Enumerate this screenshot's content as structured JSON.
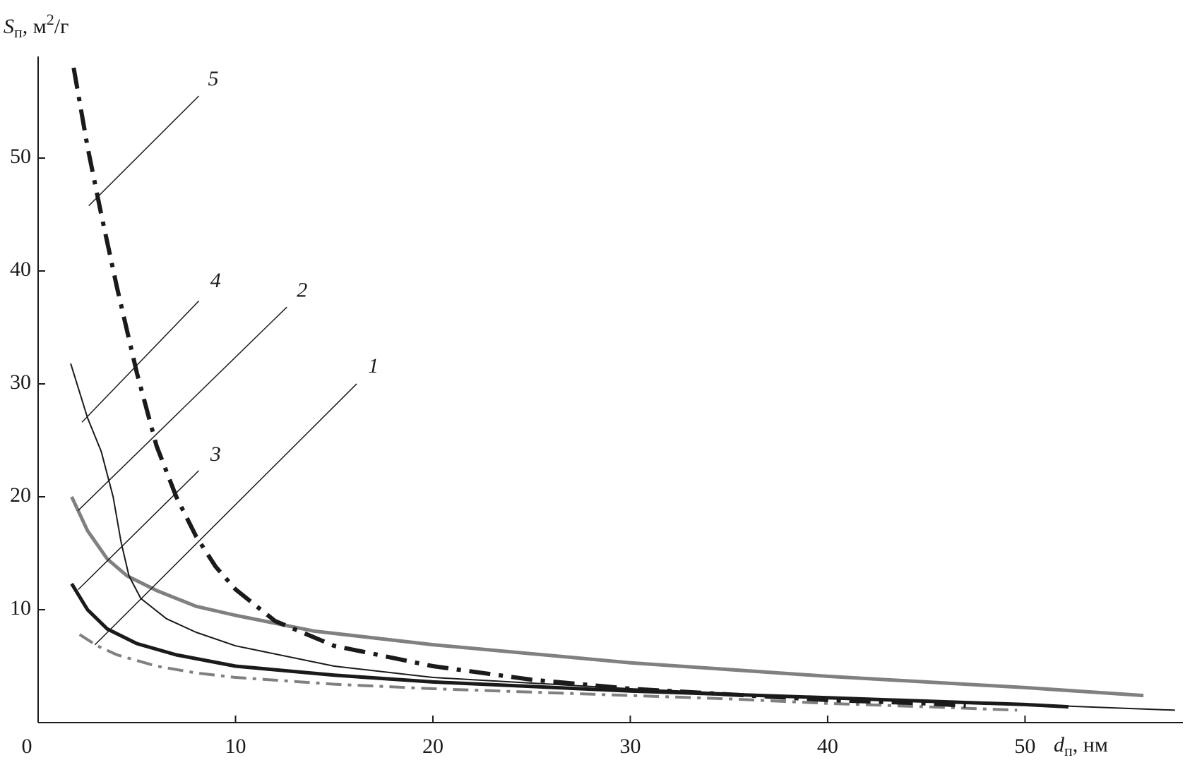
{
  "chart_data": {
    "type": "line",
    "y_label": [
      "S",
      "п",
      ", м",
      "2",
      "/г"
    ],
    "x_label": [
      "d",
      "п",
      ", нм"
    ],
    "xlim": [
      0,
      58
    ],
    "ylim": [
      0,
      59
    ],
    "xticks": [
      0,
      10,
      20,
      30,
      40,
      50
    ],
    "yticks": [
      10,
      20,
      30,
      40,
      50
    ],
    "series": [
      {
        "name": "1",
        "color": "#808080",
        "style": "dash-dot",
        "x": [
          2.1,
          3,
          4,
          6,
          8,
          10,
          15,
          20,
          25,
          30,
          35,
          40,
          45,
          49.6
        ],
        "values": [
          7.8,
          6.8,
          6.0,
          5.0,
          4.4,
          4.0,
          3.4,
          3.0,
          2.7,
          2.4,
          2.1,
          1.7,
          1.4,
          1.1
        ]
      },
      {
        "name": "2",
        "color": "#808080",
        "style": "solid-thick",
        "x": [
          1.7,
          2.5,
          3.5,
          4.5,
          6,
          8,
          10,
          14,
          20,
          30,
          40,
          50,
          56
        ],
        "values": [
          20,
          17,
          14.5,
          13,
          11.7,
          10.3,
          9.5,
          8.1,
          6.9,
          5.3,
          4.1,
          3.1,
          2.4
        ]
      },
      {
        "name": "3",
        "color": "#1a1a1a",
        "style": "solid-thick",
        "x": [
          1.7,
          2.5,
          3.5,
          5,
          7,
          10,
          15,
          20,
          30,
          40,
          50,
          52.2
        ],
        "values": [
          12.3,
          10,
          8.3,
          7,
          6,
          5,
          4.2,
          3.6,
          2.8,
          2.2,
          1.6,
          1.4
        ]
      },
      {
        "name": "4",
        "color": "#1a1a1a",
        "style": "solid-thin",
        "x": [
          1.65,
          2.5,
          3.2,
          3.8,
          4.2,
          4.6,
          5.2,
          6.5,
          8,
          10,
          15,
          20,
          30,
          40,
          50,
          57.6
        ],
        "values": [
          31.8,
          27,
          24,
          20,
          16,
          13,
          11,
          9.2,
          8,
          6.8,
          5,
          4,
          3,
          2.2,
          1.6,
          1.1
        ]
      },
      {
        "name": "5",
        "color": "#1a1a1a",
        "style": "dash-dot-thick",
        "x": [
          1.8,
          2.5,
          3.2,
          4,
          5,
          6,
          7,
          8,
          9,
          10,
          12,
          15,
          20,
          25,
          30,
          40,
          45,
          47
        ],
        "values": [
          58,
          51,
          45,
          38.5,
          31,
          24.5,
          20,
          16.5,
          13.8,
          11.8,
          9,
          6.8,
          5,
          3.8,
          3,
          2,
          1.7,
          1.5
        ]
      }
    ]
  }
}
